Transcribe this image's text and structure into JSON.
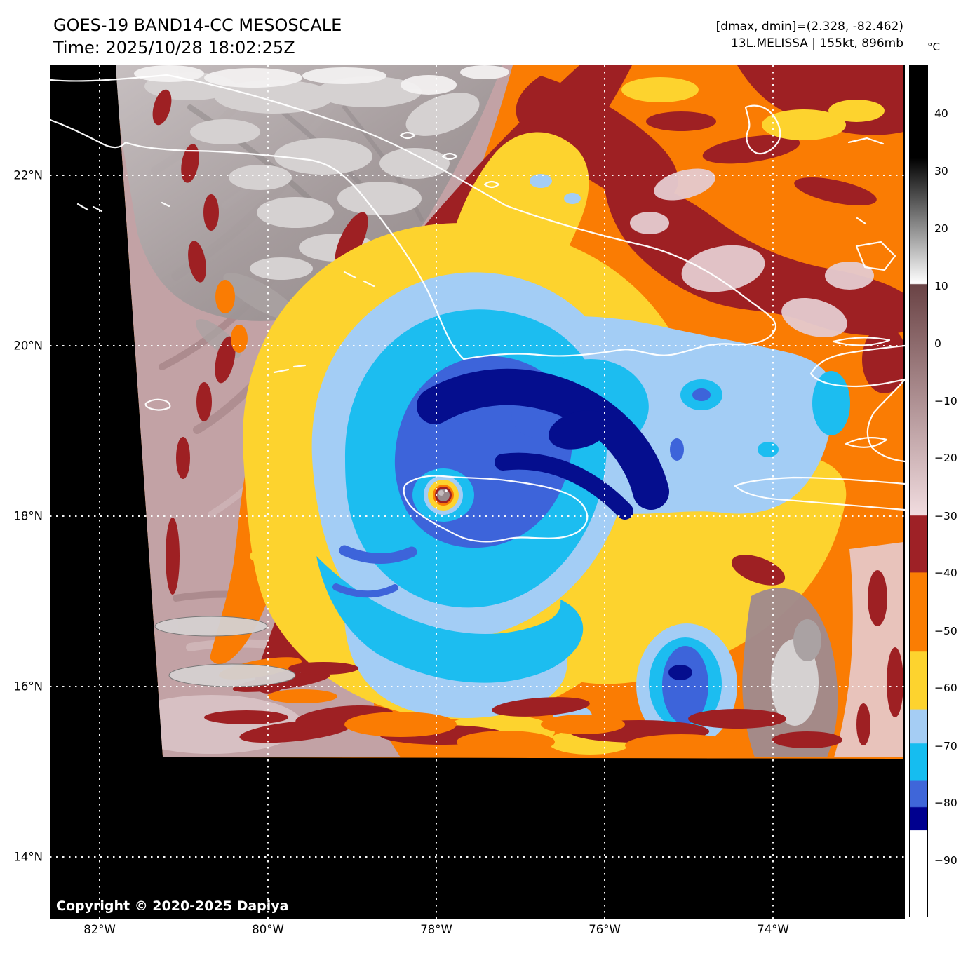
{
  "header": {
    "title": "GOES-19 BAND14-CC MESOSCALE",
    "time_line": "Time: 2025/10/28 18:02:25Z",
    "range_line": "[dmax, dmin]=(2.328, -82.462)",
    "storm_line": "13L.MELISSA | 155kt, 896mb"
  },
  "storm": {
    "id": "13L",
    "name": "MELISSA",
    "intensity_kt": "155kt",
    "pressure": "896mb",
    "satellite": "GOES-19",
    "band": "BAND14-CC",
    "sector": "MESOSCALE",
    "time": "2025/10/28 18:02:25Z",
    "dmax": 2.328,
    "dmin": -82.462
  },
  "colorbar": {
    "unit_label": "°C",
    "top_value": 48.4,
    "bottom_value": -99.8,
    "ticks": [
      {
        "label": "40",
        "value": 40,
        "pct": 5.7
      },
      {
        "label": "30",
        "value": 30,
        "pct": 12.4
      },
      {
        "label": "20",
        "value": 20,
        "pct": 19.2
      },
      {
        "label": "10",
        "value": 10,
        "pct": 25.9
      },
      {
        "label": "0",
        "value": 0,
        "pct": 32.7
      },
      {
        "label": "−10",
        "value": -10,
        "pct": 39.4
      },
      {
        "label": "−20",
        "value": -20,
        "pct": 46.1
      },
      {
        "label": "−30",
        "value": -30,
        "pct": 52.9
      },
      {
        "label": "−40",
        "value": -40,
        "pct": 59.6
      },
      {
        "label": "−50",
        "value": -50,
        "pct": 66.4
      },
      {
        "label": "−60",
        "value": -60,
        "pct": 73.1
      },
      {
        "label": "−70",
        "value": -70,
        "pct": 79.9
      },
      {
        "label": "−80",
        "value": -80,
        "pct": 86.6
      },
      {
        "label": "−90",
        "value": -90,
        "pct": 93.3
      }
    ],
    "gradient_stops": [
      {
        "c": "#000000",
        "p": 0
      },
      {
        "c": "#000000",
        "p": 10.8
      },
      {
        "c": "#ffffff",
        "p": 25.6
      },
      {
        "c": "#6a4345",
        "p": 25.7
      },
      {
        "c": "#f1dcdf",
        "p": 52.8
      },
      {
        "c": "#9e2126",
        "p": 52.9
      },
      {
        "c": "#9e2126",
        "p": 59.5
      },
      {
        "c": "#fa7d03",
        "p": 59.6
      },
      {
        "c": "#fa7d03",
        "p": 68.8
      },
      {
        "c": "#fdd32e",
        "p": 68.9
      },
      {
        "c": "#fdd32e",
        "p": 75.6
      },
      {
        "c": "#a5cdf4",
        "p": 75.7
      },
      {
        "c": "#a5cdf4",
        "p": 79.6
      },
      {
        "c": "#15bdf0",
        "p": 79.7
      },
      {
        "c": "#15bdf0",
        "p": 84.0
      },
      {
        "c": "#3f66d9",
        "p": 84.1
      },
      {
        "c": "#3f66d9",
        "p": 87.1
      },
      {
        "c": "#00008f",
        "p": 87.2
      },
      {
        "c": "#00008f",
        "p": 89.8
      },
      {
        "c": "#ffffff",
        "p": 89.9
      },
      {
        "c": "#ffffff",
        "p": 100
      }
    ]
  },
  "axes": {
    "lat_ticks": [
      {
        "label": "22°N",
        "deg": 22
      },
      {
        "label": "20°N",
        "deg": 20
      },
      {
        "label": "18°N",
        "deg": 18
      },
      {
        "label": "16°N",
        "deg": 16
      },
      {
        "label": "14°N",
        "deg": 14
      }
    ],
    "lon_ticks": [
      {
        "label": "82°W",
        "deg": 82
      },
      {
        "label": "80°W",
        "deg": 80
      },
      {
        "label": "78°W",
        "deg": 78
      },
      {
        "label": "76°W",
        "deg": 76
      },
      {
        "label": "74°W",
        "deg": 74
      }
    ]
  },
  "map": {
    "copyright": "Copyright © 2020-2025 Dapiya"
  },
  "palette": {
    "black_nodata": "#000000",
    "mauve": "#c2a2a5",
    "mauve_dark": "#8c696c",
    "mauve_light": "#dcc8ca",
    "gray_cloud": "#aaa2a3",
    "gray_bright": "#d5d1d1",
    "taupe": "#a18a8c",
    "dark_red": "#9e2023",
    "orange": "#fa7c03",
    "yellow": "#fdd32e",
    "light_blue": "#a3cdf5",
    "cyan": "#1cbdf0",
    "royal_blue": "#3d64da",
    "navy": "#050e8e",
    "pale_pink": "#e5cbcf",
    "eye_gray": "#97898b",
    "coastline": "#ffffff",
    "gridline": "#ffffff"
  }
}
